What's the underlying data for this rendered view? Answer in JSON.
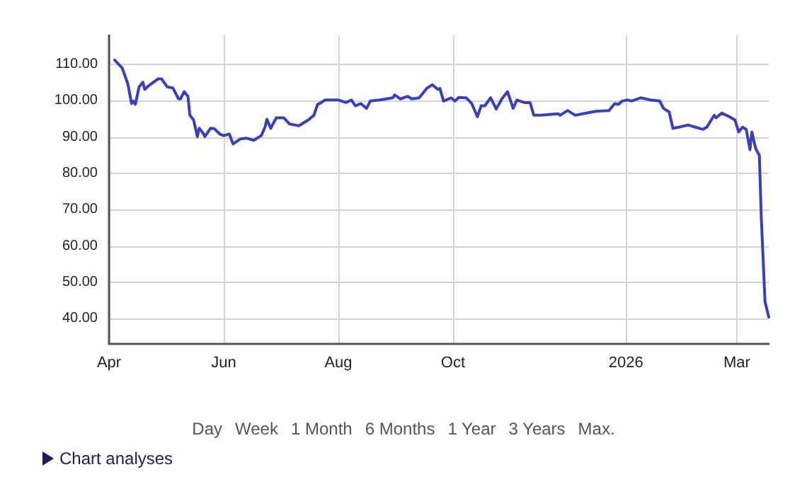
{
  "chart_data": {
    "type": "line",
    "x": [
      "2025-04-04",
      "2025-04-08",
      "2025-04-11",
      "2025-04-13",
      "2025-04-14",
      "2025-04-15",
      "2025-04-17",
      "2025-04-19",
      "2025-04-20",
      "2025-04-22",
      "2025-04-27",
      "2025-04-29",
      "2025-05-02",
      "2025-05-05",
      "2025-05-08",
      "2025-05-09",
      "2025-05-11",
      "2025-05-13",
      "2025-05-14",
      "2025-05-16",
      "2025-05-18",
      "2025-05-19",
      "2025-05-21",
      "2025-05-22",
      "2025-05-25",
      "2025-05-27",
      "2025-05-30",
      "2025-06-01",
      "2025-06-04",
      "2025-06-06",
      "2025-06-10",
      "2025-06-13",
      "2025-06-17",
      "2025-06-21",
      "2025-06-23",
      "2025-06-24",
      "2025-06-26",
      "2025-06-29",
      "2025-07-03",
      "2025-07-06",
      "2025-07-11",
      "2025-07-16",
      "2025-07-19",
      "2025-07-21",
      "2025-07-22",
      "2025-07-25",
      "2025-08-01",
      "2025-08-05",
      "2025-08-08",
      "2025-08-10",
      "2025-08-13",
      "2025-08-16",
      "2025-08-18",
      "2025-08-23",
      "2025-08-30",
      "2025-08-31",
      "2025-09-03",
      "2025-09-07",
      "2025-09-09",
      "2025-09-13",
      "2025-09-17",
      "2025-09-20",
      "2025-09-23",
      "2025-09-24",
      "2025-09-26",
      "2025-09-30",
      "2025-10-02",
      "2025-10-04",
      "2025-10-08",
      "2025-10-11",
      "2025-10-14",
      "2025-10-16",
      "2025-10-18",
      "2025-10-21",
      "2025-10-24",
      "2025-10-27",
      "2025-10-30",
      "2025-11-02",
      "2025-11-04",
      "2025-11-08",
      "2025-11-11",
      "2025-11-13",
      "2025-11-17",
      "2025-11-26",
      "2025-11-27",
      "2025-12-01",
      "2025-12-05",
      "2025-12-11",
      "2025-12-16",
      "2025-12-23",
      "2025-12-26",
      "2025-12-28",
      "2025-12-30",
      "2026-01-02",
      "2026-01-04",
      "2026-01-09",
      "2026-01-14",
      "2026-01-19",
      "2026-01-21",
      "2026-01-24",
      "2026-01-26",
      "2026-01-29",
      "2026-02-03",
      "2026-02-07",
      "2026-02-11",
      "2026-02-13",
      "2026-02-17",
      "2026-02-18",
      "2026-02-21",
      "2026-02-25",
      "2026-02-28",
      "2026-03-02",
      "2026-03-04",
      "2026-03-06",
      "2026-03-08",
      "2026-03-09",
      "2026-03-11",
      "2026-03-13",
      "2026-03-14",
      "2026-03-16",
      "2026-03-18"
    ],
    "series": [
      {
        "color": "#3a3fc0",
        "values": [
          111.2,
          109,
          104.7,
          99.2,
          99.9,
          99,
          103.8,
          105.1,
          103.1,
          104.1,
          106,
          106,
          103.8,
          103.5,
          100.5,
          100.5,
          102.5,
          101.2,
          96,
          94.7,
          90.1,
          92.4,
          91.1,
          90.1,
          92.4,
          92.3,
          90.8,
          90.4,
          90.8,
          88.1,
          89.5,
          89.7,
          89.1,
          90.4,
          92.7,
          94.9,
          92.4,
          95.3,
          95.3,
          93.6,
          93.1,
          94.7,
          96,
          99,
          99.2,
          100.2,
          100.2,
          99.5,
          100.2,
          98.6,
          99.2,
          97.9,
          99.9,
          100.2,
          100.8,
          101.6,
          100.5,
          101.2,
          100.5,
          100.8,
          103.4,
          104.4,
          103.1,
          103.4,
          99.9,
          100.8,
          99.9,
          100.9,
          100.8,
          99.2,
          95.6,
          98.6,
          98.6,
          100.8,
          97.7,
          100.5,
          102.5,
          97.9,
          100.2,
          99.5,
          99.5,
          96,
          96,
          96.4,
          96,
          97.3,
          96,
          96.6,
          97.1,
          97.3,
          99.2,
          99,
          99.9,
          100.2,
          99.9,
          100.8,
          100.2,
          99.9,
          97.9,
          96.9,
          92.4,
          92.7,
          93.3,
          92.7,
          92.1,
          92.7,
          96,
          95.3,
          96.6,
          95.6,
          94.7,
          91.4,
          92.7,
          92.1,
          86.5,
          91.4,
          86.9,
          84.9,
          68,
          44.6,
          40.4
        ]
      }
    ],
    "xlim": [
      "2025-04-01",
      "2026-03-18"
    ],
    "xticks": [
      {
        "value": "2025-04-01",
        "label": "Apr"
      },
      {
        "value": "2025-06-01",
        "label": "Jun"
      },
      {
        "value": "2025-08-01",
        "label": "Aug"
      },
      {
        "value": "2025-10-01",
        "label": "Oct"
      },
      {
        "value": "2026-01-01",
        "label": "2026"
      },
      {
        "value": "2026-03-01",
        "label": "Mar"
      }
    ],
    "ylim": [
      33,
      118
    ],
    "yticks": [
      {
        "value": 40,
        "label": "40.00"
      },
      {
        "value": 50,
        "label": "50.00"
      },
      {
        "value": 60,
        "label": "60.00"
      },
      {
        "value": 70,
        "label": "70.00"
      },
      {
        "value": 80,
        "label": "80.00"
      },
      {
        "value": 90,
        "label": "90.00"
      },
      {
        "value": 100,
        "label": "100.00"
      },
      {
        "value": 110,
        "label": "110.00"
      }
    ],
    "grid": true,
    "marker": "none",
    "line_style": "solid",
    "annotations": [
      "Day",
      "Week",
      "1 Month",
      "6 Months",
      "1 Year",
      "3 Years",
      "Max.",
      "Chart analyses"
    ]
  }
}
